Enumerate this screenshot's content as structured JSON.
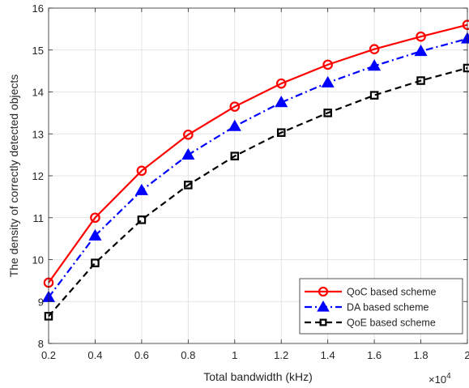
{
  "chart_data": {
    "type": "line",
    "xlabel": "Total bandwidth (kHz)",
    "ylabel": "The density of correctly detected objects",
    "x_multiplier_label": "×10",
    "x_multiplier_exp": "4",
    "x": [
      0.2,
      0.4,
      0.6,
      0.8,
      1.0,
      1.2,
      1.4,
      1.6,
      1.8,
      2.0
    ],
    "xlim": [
      0.2,
      2.0
    ],
    "ylim": [
      8,
      16
    ],
    "x_ticks": [
      0.2,
      0.4,
      0.6,
      0.8,
      1,
      1.2,
      1.4,
      1.6,
      1.8,
      2
    ],
    "x_tick_labels": [
      "0.2",
      "0.4",
      "0.6",
      "0.8",
      "1",
      "1.2",
      "1.4",
      "1.6",
      "1.8",
      "2"
    ],
    "y_ticks": [
      8,
      9,
      10,
      11,
      12,
      13,
      14,
      15,
      16
    ],
    "y_tick_labels": [
      "8",
      "9",
      "10",
      "11",
      "12",
      "13",
      "14",
      "15",
      "16"
    ],
    "grid": true,
    "legend_position": "bottom-right",
    "series": [
      {
        "name": "QoC based scheme",
        "values": [
          9.45,
          11.0,
          12.12,
          12.98,
          13.65,
          14.2,
          14.65,
          15.02,
          15.32,
          15.6
        ],
        "color": "#ff0000",
        "line_style": "solid",
        "marker": "circle"
      },
      {
        "name": "DA based scheme",
        "values": [
          9.1,
          10.57,
          11.65,
          12.5,
          13.18,
          13.75,
          14.22,
          14.62,
          14.97,
          15.27
        ],
        "color": "#0000ff",
        "line_style": "dash-dot",
        "marker": "triangle"
      },
      {
        "name": "QoE based scheme",
        "values": [
          8.65,
          9.92,
          10.95,
          11.78,
          12.47,
          13.03,
          13.5,
          13.92,
          14.27,
          14.57
        ],
        "color": "#000000",
        "line_style": "dashed",
        "marker": "square"
      }
    ]
  }
}
